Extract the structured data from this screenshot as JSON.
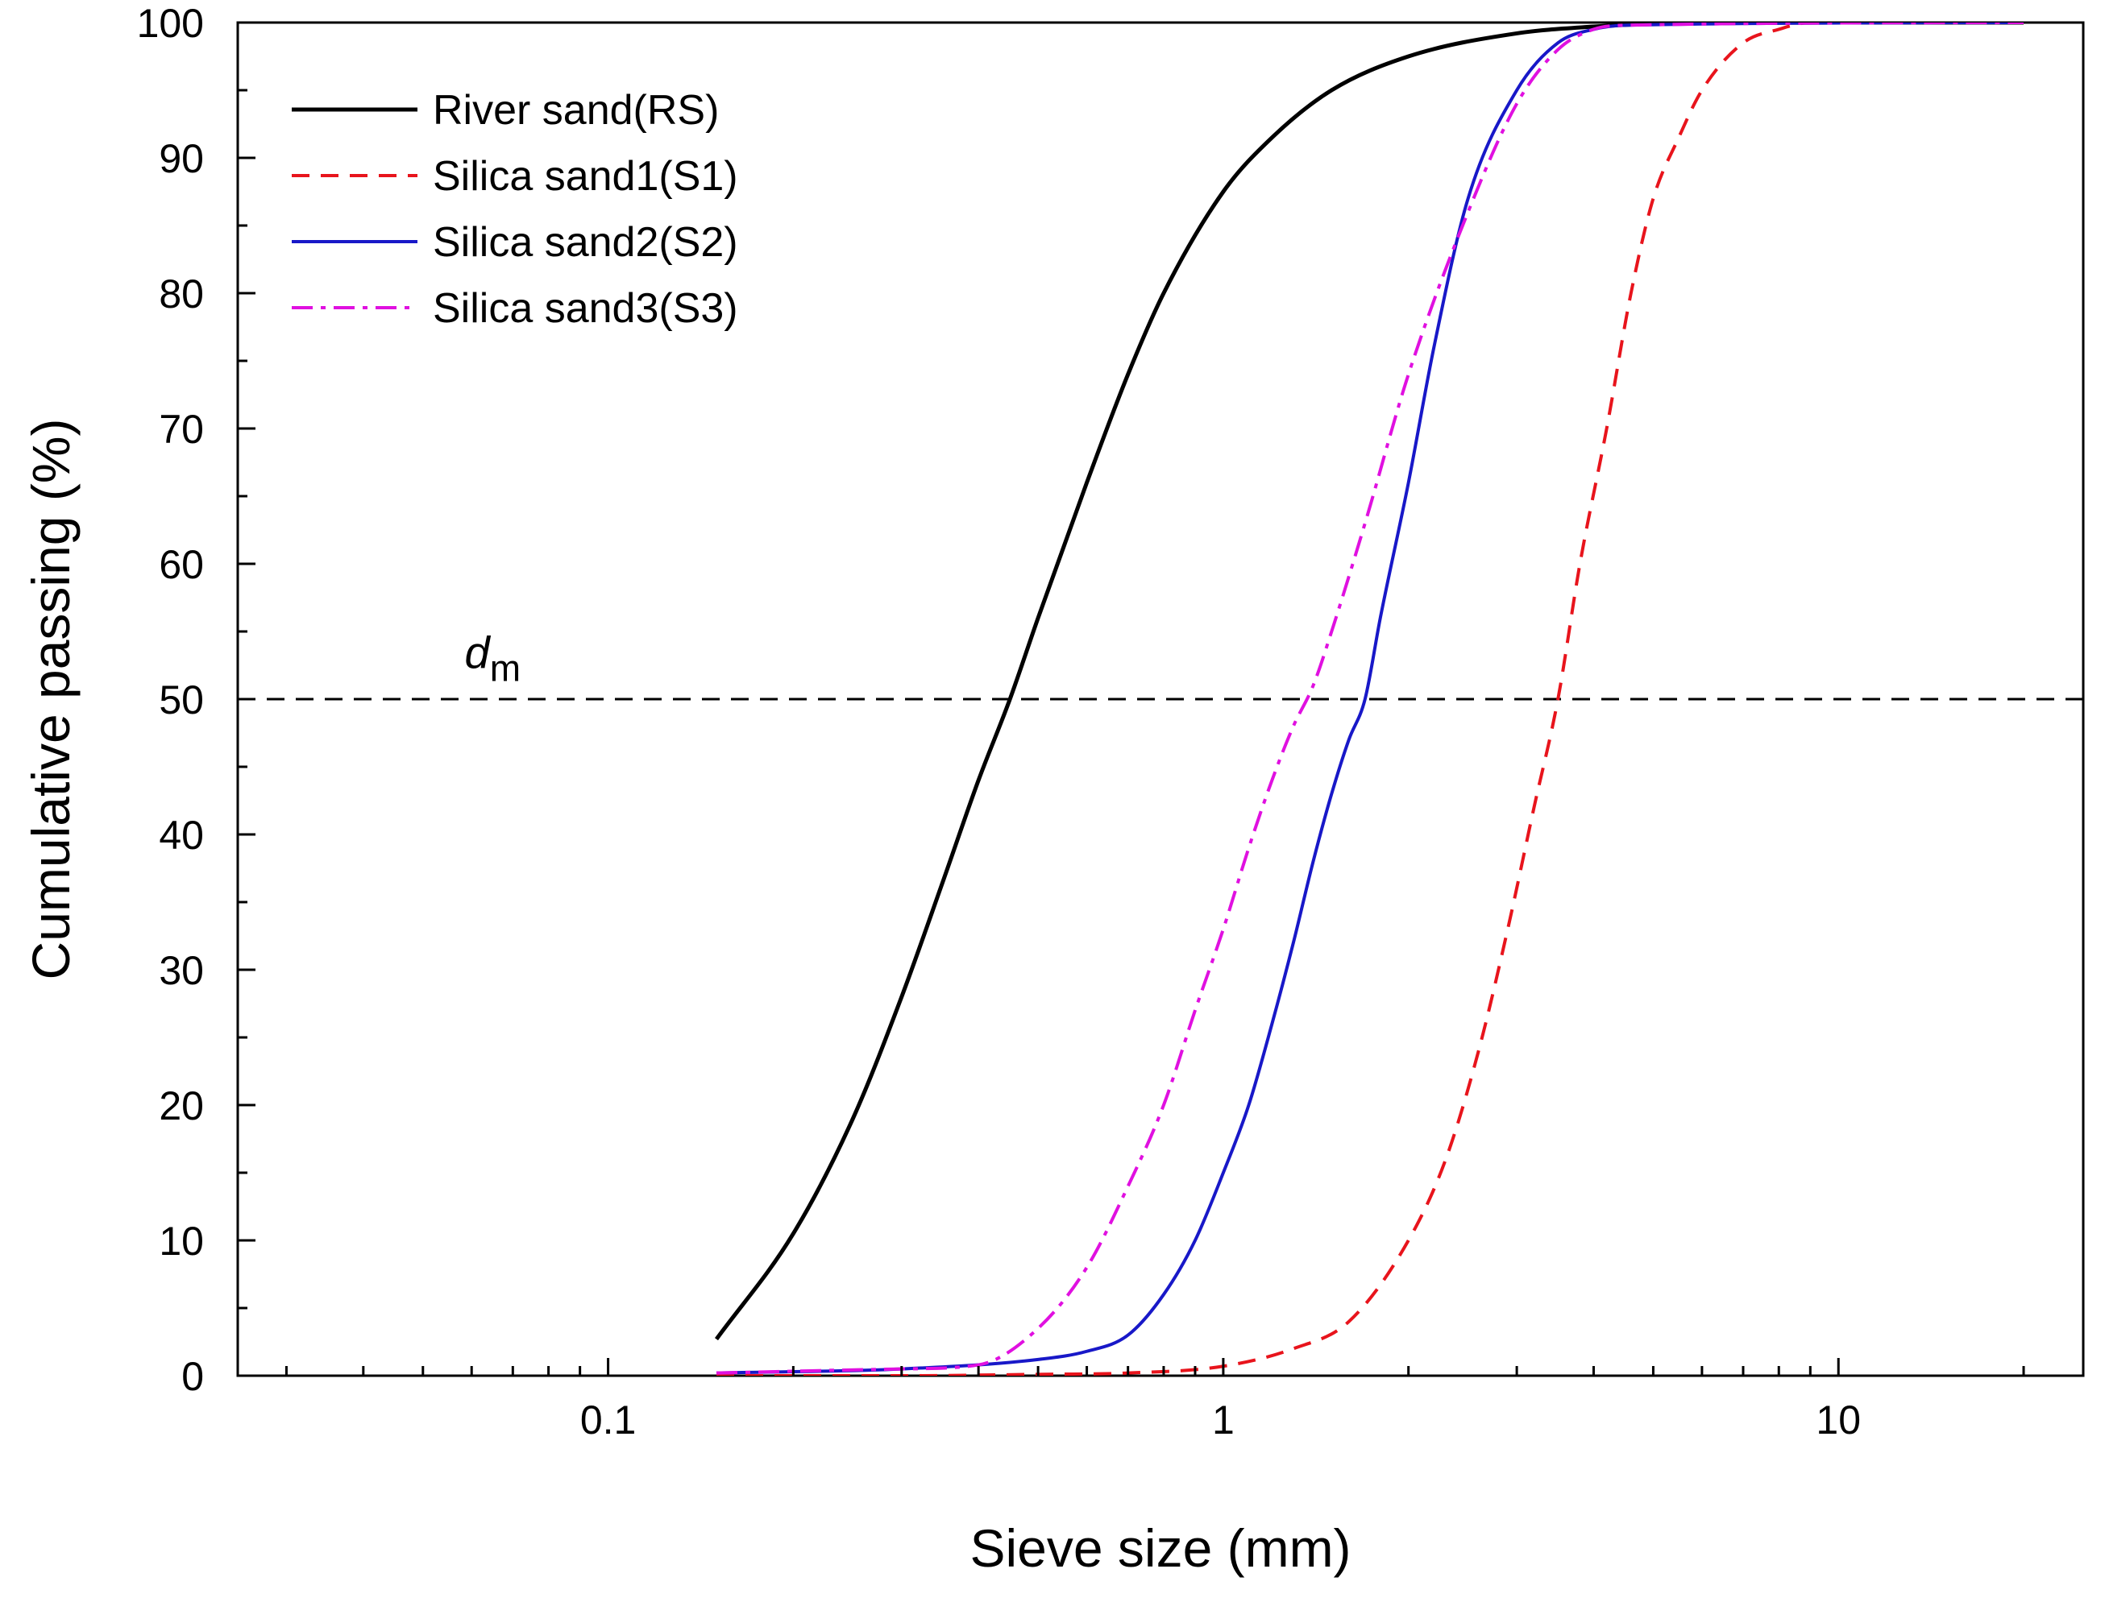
{
  "chart_data": {
    "type": "line",
    "title": "",
    "xlabel": "Sieve size (mm)",
    "ylabel": "Cumulative passing (%)",
    "xscale": "log",
    "xlim": [
      0.025,
      25
    ],
    "ylim": [
      0,
      100
    ],
    "x_ticks": [
      0.1,
      1,
      10
    ],
    "x_tick_labels": [
      "0.1",
      "1",
      "10"
    ],
    "y_ticks": [
      0,
      10,
      20,
      30,
      40,
      50,
      60,
      70,
      80,
      90,
      100
    ],
    "y_tick_labels": [
      "0",
      "10",
      "20",
      "30",
      "40",
      "50",
      "60",
      "70",
      "80",
      "90",
      "100"
    ],
    "grid": false,
    "legend_position": "top-left",
    "series": [
      {
        "name": "River sand(RS)",
        "color": "#000000",
        "dash": "solid",
        "x": [
          0.15,
          0.2,
          0.25,
          0.3,
          0.35,
          0.4,
          0.45,
          0.5,
          0.6,
          0.7,
          0.8,
          1.0,
          1.2,
          1.5,
          2.0,
          3.0,
          4.0,
          5.0,
          10.0,
          20.0
        ],
        "y": [
          2.7,
          10.5,
          19,
          28,
          36.5,
          44,
          50,
          56,
          66,
          74,
          80,
          87.5,
          91.5,
          95,
          97.5,
          99.2,
          99.7,
          99.9,
          100,
          100
        ]
      },
      {
        "name": "Silica sand1(S1)",
        "color": "#e8141c",
        "dash": "dashed",
        "x": [
          0.15,
          0.3,
          0.5,
          0.7,
          1.0,
          1.3,
          1.6,
          2.0,
          2.3,
          2.6,
          2.9,
          3.2,
          3.5,
          3.8,
          4.2,
          4.6,
          5.0,
          5.5,
          6.0,
          7.0,
          8.0,
          9.0,
          20.0
        ],
        "y": [
          0,
          0,
          0.1,
          0.2,
          0.7,
          2,
          4,
          10,
          16,
          24,
          33,
          42,
          50,
          60,
          70,
          80,
          87,
          91.5,
          95,
          98.5,
          99.5,
          100,
          100
        ]
      },
      {
        "name": "Silica sand2(S2)",
        "color": "#1818c8",
        "dash": "solid",
        "x": [
          0.15,
          0.3,
          0.5,
          0.6,
          0.7,
          0.8,
          0.9,
          1.0,
          1.1,
          1.2,
          1.3,
          1.4,
          1.5,
          1.6,
          1.7,
          1.8,
          2.0,
          2.2,
          2.5,
          3.0,
          3.5,
          4.0,
          4.5,
          20.0
        ],
        "y": [
          0.2,
          0.5,
          1.2,
          1.8,
          3,
          6,
          10,
          15,
          20,
          26,
          32,
          38,
          43,
          47,
          50,
          56,
          66,
          76,
          87,
          95,
          98.5,
          99.5,
          99.8,
          100
        ]
      },
      {
        "name": "Silica sand3(S3)",
        "color": "#e010e0",
        "dash": "dashdot",
        "x": [
          0.15,
          0.3,
          0.4,
          0.5,
          0.6,
          0.7,
          0.8,
          0.9,
          1.0,
          1.1,
          1.2,
          1.3,
          1.4,
          1.5,
          1.7,
          2.0,
          2.5,
          3.0,
          3.5,
          4.0,
          4.5,
          20.0
        ],
        "y": [
          0.2,
          0.5,
          0.8,
          3.5,
          8,
          14,
          20,
          27,
          33,
          39,
          44,
          48,
          51,
          55,
          63,
          74,
          86,
          94,
          98,
          99.5,
          99.8,
          100
        ]
      }
    ],
    "reference_lines": [
      {
        "type": "horizontal",
        "y": 50,
        "color": "#000000",
        "dash": "dashed"
      }
    ],
    "annotations": [
      {
        "text": "d",
        "subscript": "m",
        "x": 0.035,
        "y": 53
      }
    ]
  }
}
